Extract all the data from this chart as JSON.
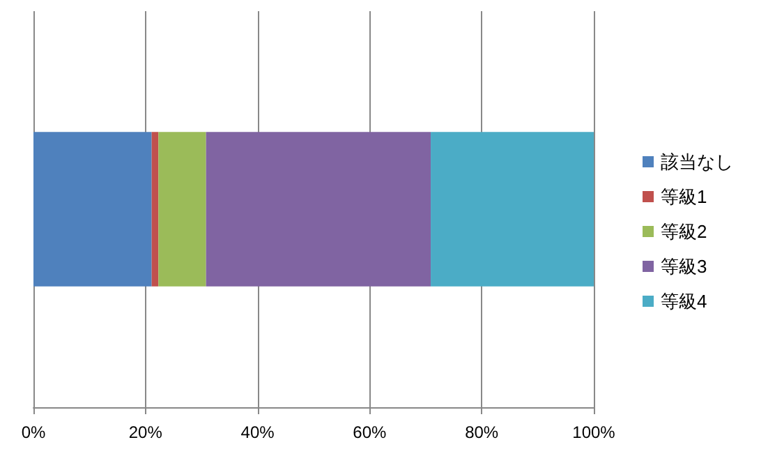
{
  "chart_data": {
    "type": "bar",
    "orientation": "horizontal",
    "stacked": true,
    "categories": [
      null
    ],
    "series": [
      {
        "name": "該当なし",
        "color": "#4f81bd",
        "values": [
          21.1
        ]
      },
      {
        "name": "等級1",
        "color": "#c0504d",
        "values": [
          1.2
        ]
      },
      {
        "name": "等級2",
        "color": "#9bbb59",
        "values": [
          8.5
        ]
      },
      {
        "name": "等級3",
        "color": "#8064a2",
        "values": [
          40.1
        ]
      },
      {
        "name": "等級4",
        "color": "#4bacc6",
        "values": [
          29.1
        ]
      }
    ],
    "xlim": [
      0,
      100
    ],
    "xticks": [
      {
        "value": 0,
        "label": "0%"
      },
      {
        "value": 20,
        "label": "20%"
      },
      {
        "value": 40,
        "label": "40%"
      },
      {
        "value": 60,
        "label": "60%"
      },
      {
        "value": 80,
        "label": "80%"
      },
      {
        "value": 100,
        "label": "100%"
      }
    ],
    "grid": "x",
    "legend": "right"
  }
}
